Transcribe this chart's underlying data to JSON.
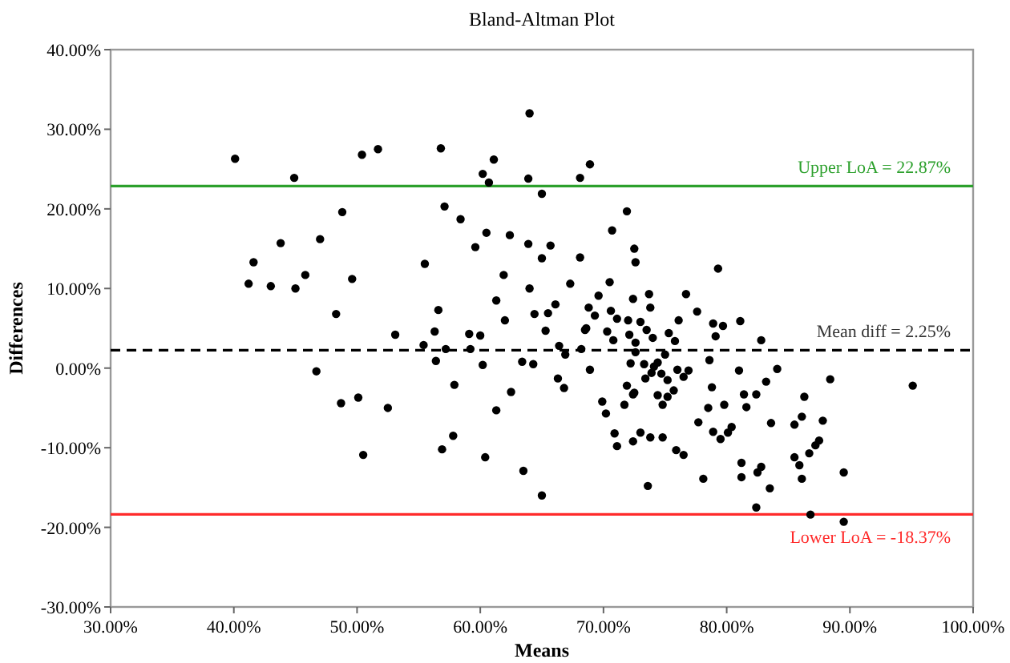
{
  "chart_data": {
    "type": "scatter",
    "title": "Bland-Altman Plot",
    "xlabel": "Means",
    "ylabel": "Differences",
    "marker": "circle",
    "xlim": [
      30,
      100
    ],
    "ylim": [
      -30,
      40
    ],
    "xticks": [
      {
        "value": 30,
        "label": "30.00%"
      },
      {
        "value": 40,
        "label": "40.00%"
      },
      {
        "value": 50,
        "label": "50.00%"
      },
      {
        "value": 60,
        "label": "60.00%"
      },
      {
        "value": 70,
        "label": "70.00%"
      },
      {
        "value": 80,
        "label": "80.00%"
      },
      {
        "value": 90,
        "label": "90.00%"
      },
      {
        "value": 100,
        "label": "100.00%"
      }
    ],
    "yticks": [
      {
        "value": -30,
        "label": "-30.00%"
      },
      {
        "value": -20,
        "label": "-20.00%"
      },
      {
        "value": -10,
        "label": "-10.00%"
      },
      {
        "value": 0,
        "label": "0.00%"
      },
      {
        "value": 10,
        "label": "10.00%"
      },
      {
        "value": 20,
        "label": "20.00%"
      },
      {
        "value": 30,
        "label": "30.00%"
      },
      {
        "value": 40,
        "label": "40.00%"
      }
    ],
    "ref_lines": [
      {
        "axis": "y",
        "value": 22.87,
        "label": "Upper LoA = 22.87%",
        "color": "#2ca02c",
        "line_style": "solid"
      },
      {
        "axis": "y",
        "value": 2.25,
        "label": "Mean diff = 2.25%",
        "color": "#000000",
        "line_style": "dashed"
      },
      {
        "axis": "y",
        "value": -18.37,
        "label": "Lower LoA = -18.37%",
        "color": "#ff2a2a",
        "line_style": "solid"
      }
    ],
    "series": [
      {
        "color": "#000000",
        "x": [
          40.1,
          44.9,
          50.4,
          51.7,
          48.8,
          43.8,
          47.0,
          41.6,
          41.2,
          43.0,
          45.0,
          45.8,
          49.6,
          48.3,
          53.1,
          46.7,
          48.7,
          50.1,
          52.5,
          50.5,
          64.0,
          56.8,
          61.1,
          60.2,
          60.7,
          63.9,
          68.1,
          68.9,
          65.0,
          57.1,
          58.4,
          71.9,
          60.5,
          59.6,
          62.4,
          63.9,
          65.7,
          65.0,
          68.1,
          70.7,
          72.5,
          72.6,
          55.5,
          61.9,
          64.0,
          67.3,
          70.5,
          61.3,
          64.4,
          65.5,
          66.1,
          62.0,
          68.8,
          69.6,
          69.3,
          70.6,
          71.1,
          72.4,
          73.7,
          73.8,
          72.0,
          73.0,
          73.5,
          74.0,
          72.1,
          72.6,
          70.3,
          70.8,
          68.5,
          68.6,
          65.3,
          56.6,
          56.3,
          55.4,
          59.1,
          60.0,
          57.2,
          59.2,
          56.4,
          60.2,
          66.4,
          66.9,
          68.2,
          63.4,
          64.3,
          66.3,
          66.8,
          68.9,
          57.9,
          62.5,
          61.3,
          57.8,
          56.9,
          60.4,
          63.5,
          65.0,
          69.9,
          70.2,
          70.9,
          71.1,
          71.7,
          71.9,
          72.4,
          72.5,
          72.2,
          72.6,
          73.3,
          73.4,
          73.9,
          74.1,
          74.4,
          74.7,
          75.0,
          75.3,
          75.8,
          75.2,
          74.4,
          74.8,
          75.2,
          75.7,
          76.0,
          76.5,
          76.9,
          76.1,
          76.7,
          77.6,
          78.9,
          79.1,
          78.6,
          78.8,
          78.5,
          77.7,
          78.9,
          79.5,
          79.3,
          73.0,
          73.8,
          74.8,
          72.4,
          73.6,
          75.9,
          76.5,
          78.1,
          79.7,
          81.1,
          82.8,
          81.0,
          84.1,
          83.2,
          88.4,
          95.1,
          81.4,
          82.4,
          86.3,
          79.8,
          81.6,
          86.1,
          87.8,
          83.6,
          85.5,
          80.4,
          80.1,
          87.5,
          87.2,
          86.7,
          85.5,
          85.9,
          81.2,
          82.8,
          82.5,
          81.2,
          86.1,
          83.5,
          89.5,
          82.4,
          86.8,
          89.5
        ],
        "values": [
          26.3,
          23.9,
          26.8,
          27.5,
          19.6,
          15.7,
          16.2,
          13.3,
          10.6,
          10.3,
          10.0,
          11.7,
          11.2,
          6.8,
          4.2,
          -0.4,
          -4.4,
          -3.7,
          -5.0,
          -10.9,
          32.0,
          27.6,
          26.2,
          24.4,
          23.3,
          23.8,
          23.9,
          25.6,
          21.9,
          20.3,
          18.7,
          19.7,
          17.0,
          15.2,
          16.7,
          15.6,
          15.4,
          13.8,
          13.9,
          17.3,
          15.0,
          13.3,
          13.1,
          11.7,
          10.0,
          10.6,
          10.8,
          8.5,
          6.8,
          6.9,
          8.0,
          6.0,
          7.6,
          9.1,
          6.6,
          7.2,
          6.2,
          8.7,
          9.3,
          7.6,
          6.0,
          5.8,
          4.8,
          3.8,
          4.2,
          3.2,
          4.6,
          3.5,
          4.8,
          5.0,
          4.7,
          7.3,
          4.6,
          2.9,
          4.3,
          4.1,
          2.4,
          2.4,
          0.9,
          0.4,
          2.8,
          1.7,
          2.4,
          0.8,
          0.5,
          -1.3,
          -2.5,
          -0.2,
          -2.1,
          -3.0,
          -5.3,
          -8.5,
          -10.2,
          -11.2,
          -12.9,
          -16.0,
          -4.2,
          -5.7,
          -8.2,
          -9.8,
          -4.6,
          -2.2,
          -3.3,
          -3.1,
          0.6,
          2.0,
          0.5,
          -1.3,
          -0.6,
          0.2,
          0.7,
          -0.7,
          1.7,
          4.4,
          3.4,
          -1.5,
          -3.4,
          -4.6,
          -3.6,
          -2.8,
          -0.2,
          -1.1,
          -0.3,
          6.0,
          9.3,
          7.1,
          5.6,
          4.0,
          1.0,
          -2.4,
          -5.0,
          -6.8,
          -8.0,
          -8.9,
          12.5,
          -8.1,
          -8.7,
          -8.7,
          -9.2,
          -14.8,
          -10.3,
          -10.9,
          -13.9,
          5.3,
          5.9,
          3.5,
          -0.3,
          -0.1,
          -1.7,
          -1.4,
          -2.2,
          -3.3,
          -3.3,
          -3.6,
          -4.6,
          -4.9,
          -6.1,
          -6.6,
          -6.9,
          -7.1,
          -7.4,
          -8.1,
          -9.1,
          -9.7,
          -10.7,
          -11.2,
          -12.2,
          -11.9,
          -12.4,
          -13.1,
          -13.7,
          -13.9,
          -15.1,
          -13.1,
          -17.5,
          -18.4,
          -19.3
        ]
      }
    ]
  }
}
